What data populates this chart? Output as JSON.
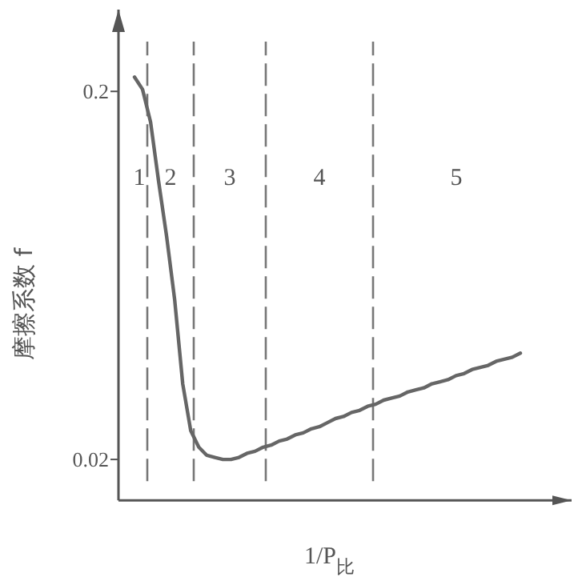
{
  "chart_data": {
    "type": "line",
    "xlabel": "1/P$_{比}$",
    "ylabel": "摩擦系数 f",
    "categories": [
      null,
      null,
      null,
      null,
      null,
      null,
      null,
      null,
      null,
      null,
      null,
      null,
      null,
      null,
      null,
      null,
      null,
      null,
      null,
      null,
      null,
      null,
      null,
      null,
      null,
      null,
      null,
      null,
      null,
      null,
      null,
      null,
      null,
      null,
      null,
      null,
      null,
      null,
      null,
      null,
      null,
      null,
      null,
      null,
      null,
      null,
      null,
      null,
      null
    ],
    "series": [
      {
        "color": "#666666",
        "values": [
          0.207,
          0.201,
          0.185,
          0.156,
          0.129,
          0.098,
          0.057,
          0.034,
          0.026,
          0.022,
          0.021,
          0.02,
          0.02,
          0.021,
          0.023,
          0.024,
          0.026,
          0.027,
          0.029,
          0.03,
          0.032,
          0.033,
          0.035,
          0.036,
          0.038,
          0.04,
          0.041,
          0.043,
          0.044,
          0.046,
          0.047,
          0.049,
          0.05,
          0.051,
          0.053,
          0.054,
          0.055,
          0.057,
          0.058,
          0.059,
          0.061,
          0.062,
          0.064,
          0.065,
          0.066,
          0.068,
          0.069,
          0.07,
          0.072
        ]
      }
    ],
    "ylim": [
      0,
      0.24
    ],
    "yticks": [
      0.02,
      0.2
    ],
    "tick_labels": "y",
    "marker": "none",
    "line_style": "solid",
    "annotations": [
      "1",
      "2",
      "3",
      "4",
      "5"
    ]
  }
}
